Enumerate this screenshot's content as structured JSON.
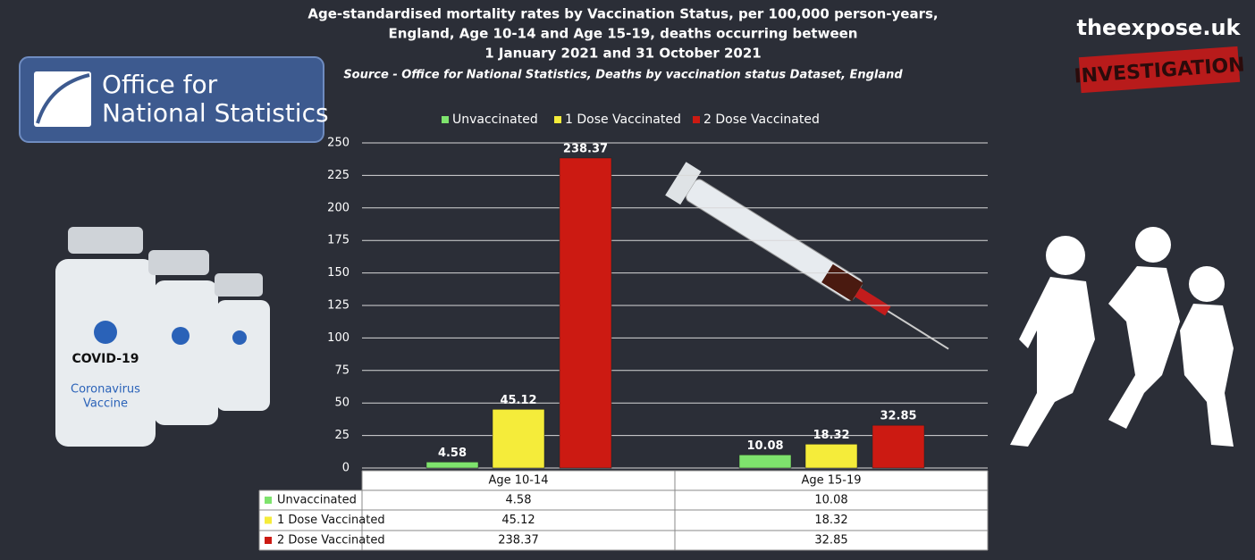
{
  "chart_data": {
    "type": "bar",
    "title": [
      "Age-standardised mortality rates by Vaccination Status, per 100,000 person-years,",
      "England, Age 10-14 and Age 15-19, deaths occurring between",
      "1 January 2021 and 31 October 2021"
    ],
    "subtitle": "Source - Office for National Statistics, Deaths by vaccination status Dataset, England",
    "categories": [
      "Age 10-14",
      "Age 15-19"
    ],
    "series": [
      {
        "name": "Unvaccinated",
        "color": "#7ee36d",
        "values": [
          4.58,
          10.08
        ]
      },
      {
        "name": "1 Dose Vaccinated",
        "color": "#f5ec3a",
        "values": [
          45.12,
          18.32
        ]
      },
      {
        "name": "2 Dose Vaccinated",
        "color": "#cc1a12",
        "values": [
          238.37,
          32.85
        ]
      }
    ],
    "ylim": [
      0,
      250
    ],
    "yticks": [
      0,
      25,
      50,
      75,
      100,
      125,
      150,
      175,
      200,
      225,
      250
    ],
    "grid": true,
    "legend": "top"
  },
  "logo": [
    "Office for",
    "National Statistics"
  ],
  "site": "theexpose.uk",
  "stamp": "INVESTIGATION",
  "vial": [
    "COVID-19",
    "Coronavirus",
    "Vaccine"
  ]
}
